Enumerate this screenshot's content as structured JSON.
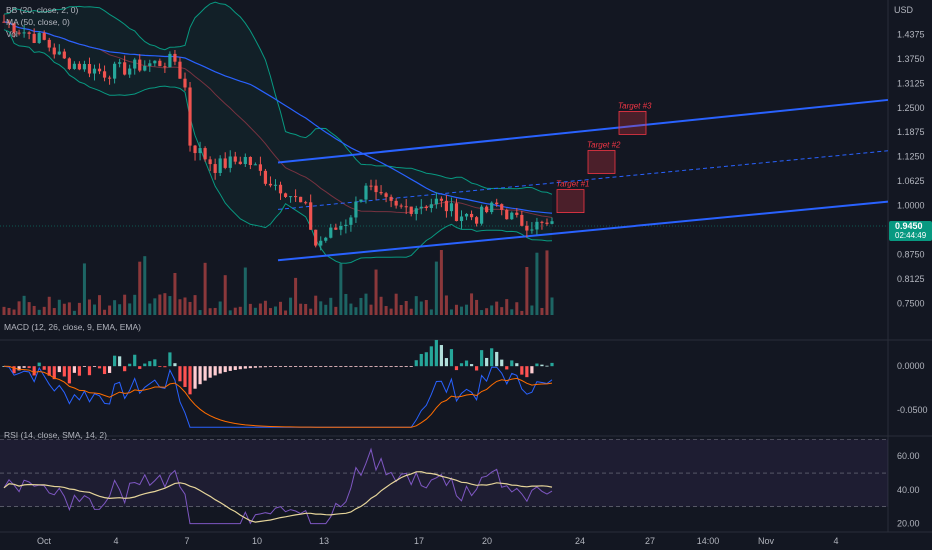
{
  "chart_data": {
    "type": "candlestick",
    "currency": "USD",
    "price_axis": {
      "ticks": [
        "1.4375",
        "1.3750",
        "1.3125",
        "1.2500",
        "1.1875",
        "1.1250",
        "1.0625",
        "1.0000",
        "0.8750",
        "0.8125",
        "0.7500"
      ],
      "range": [
        0.72,
        1.5
      ]
    },
    "last_price": {
      "value": "0.9450",
      "countdown": "02:44:49",
      "color": "#089981"
    },
    "x_ticks": [
      "Oct",
      "4",
      "7",
      "10",
      "13",
      "17",
      "20",
      "24",
      "27",
      "14:00",
      "Nov",
      "4"
    ],
    "indicators": {
      "bb": "BB (20, close, 2, 0)",
      "ma": "MA (50, close, 0)",
      "vol": "Vol",
      "macd": "MACD (12, 26, close, 9, EMA, EMA)",
      "rsi": "RSI (14, close, SMA, 14, 2)"
    },
    "macd_axis": {
      "ticks": [
        "0.0000",
        "-0.0500"
      ],
      "range": [
        -0.08,
        0.03
      ]
    },
    "rsi_axis": {
      "ticks": [
        "60.00",
        "40.00",
        "20.00"
      ],
      "range": [
        15,
        72
      ],
      "bands": [
        30,
        50,
        70
      ]
    },
    "targets": [
      {
        "label": "Target #1",
        "value": 1.01
      },
      {
        "label": "Target #2",
        "value": 1.11
      },
      {
        "label": "Target #3",
        "value": 1.21
      }
    ],
    "channel": {
      "start_date": "Oct 11",
      "end_date": "Nov 5",
      "lower": [
        0.86,
        1.01
      ],
      "upper": [
        1.11,
        1.27
      ],
      "mid": [
        0.99,
        1.14
      ]
    },
    "colors": {
      "up": "#26a69a",
      "down": "#ef5350",
      "bb": "#089981",
      "ma": "#7b2f3c",
      "channel": "#2962ff",
      "macd": "#2962ff",
      "signal": "#ff6d00",
      "rsi": "#7e57c2",
      "rsi_ma": "#e6d59a"
    }
  }
}
